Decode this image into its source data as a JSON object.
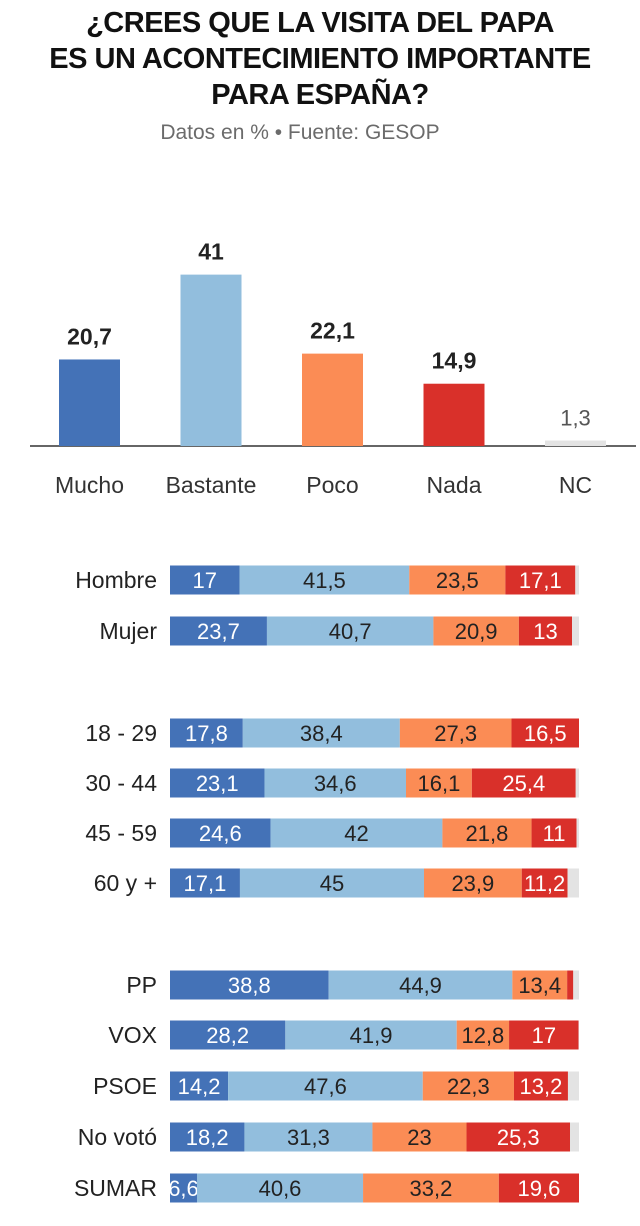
{
  "title_lines": [
    "¿CREES QUE LA VISITA DEL PAPA",
    "ES UN ACONTECIMIENTO IMPORTANTE",
    "PARA ESPAÑA?"
  ],
  "subtitle": "Datos en % • Fuente: GESOP",
  "colors": {
    "mucho": "#4472b7",
    "bastante": "#92bedd",
    "poco": "#fb8c55",
    "nada": "#d9302a",
    "nc": "#e3e3e3",
    "axis": "#333333",
    "label_dark": "#222222",
    "label_light": "#ffffff",
    "nc_label": "#555555"
  },
  "chart_data": [
    {
      "type": "bar",
      "categories": [
        "Mucho",
        "Bastante",
        "Poco",
        "Nada",
        "NC"
      ],
      "values": [
        20.7,
        41,
        22.1,
        14.9,
        1.3
      ],
      "value_labels": [
        "20,7",
        "41",
        "22,1",
        "14,9",
        "1,3"
      ],
      "ylim": [
        0,
        45
      ]
    },
    {
      "type": "bar",
      "orientation": "horizontal",
      "stacked": true,
      "categories": [
        "Hombre",
        "Mujer",
        "18 - 29",
        "30 - 44",
        "45 - 59",
        "60 y +",
        "PP",
        "VOX",
        "PSOE",
        "No votó",
        "SUMAR"
      ],
      "series": [
        {
          "name": "Mucho",
          "values": [
            17,
            23.7,
            17.8,
            23.1,
            24.6,
            17.1,
            38.8,
            28.2,
            14.2,
            18.2,
            6.6
          ],
          "labels": [
            "17",
            "23,7",
            "17,8",
            "23,1",
            "24,6",
            "17,1",
            "38,8",
            "28,2",
            "14,2",
            "18,2",
            "6,6"
          ]
        },
        {
          "name": "Bastante",
          "values": [
            41.5,
            40.7,
            38.4,
            34.6,
            42,
            45,
            44.9,
            41.9,
            47.6,
            31.3,
            40.6
          ],
          "labels": [
            "41,5",
            "40,7",
            "38,4",
            "34,6",
            "42",
            "45",
            "44,9",
            "41,9",
            "47,6",
            "31,3",
            "40,6"
          ]
        },
        {
          "name": "Poco",
          "values": [
            23.5,
            20.9,
            27.3,
            16.1,
            21.8,
            23.9,
            13.4,
            12.8,
            22.3,
            23,
            33.2
          ],
          "labels": [
            "23,5",
            "20,9",
            "27,3",
            "16,1",
            "21,8",
            "23,9",
            "13,4",
            "12,8",
            "22,3",
            "23",
            "33,2"
          ]
        },
        {
          "name": "Nada",
          "values": [
            17.1,
            13,
            16.5,
            25.4,
            11,
            11.2,
            1.5,
            17,
            13.2,
            25.3,
            19.6
          ],
          "labels": [
            "17,1",
            "13",
            "16,5",
            "25,4",
            "11",
            "11,2",
            "",
            "17",
            "13,2",
            "25,3",
            "19,6"
          ]
        },
        {
          "name": "NC",
          "values": [
            0.9,
            1.7,
            0,
            0.8,
            0.6,
            2.8,
            1.4,
            0.1,
            2.7,
            2.2,
            0
          ],
          "labels": [
            "",
            "",
            "",
            "",
            "",
            "",
            "",
            "",
            "",
            "",
            ""
          ]
        }
      ],
      "xlim": [
        0,
        100
      ]
    }
  ]
}
